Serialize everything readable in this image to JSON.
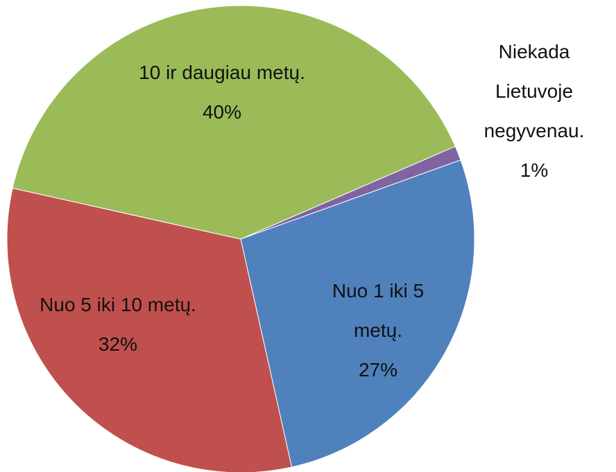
{
  "chart_data": {
    "type": "pie",
    "categories": [
      "Niekada Lietuvoje negyvenau.",
      "Nuo 1 iki 5 metų.",
      "Nuo 5 iki 10 metų.",
      "10 ir daugiau metų."
    ],
    "values": [
      1,
      27,
      32,
      40
    ],
    "value_labels": [
      "1%",
      "27%",
      "32%",
      "40%"
    ],
    "colors": [
      "#8064a2",
      "#4f81bd",
      "#c0504d",
      "#9bbb59"
    ]
  }
}
